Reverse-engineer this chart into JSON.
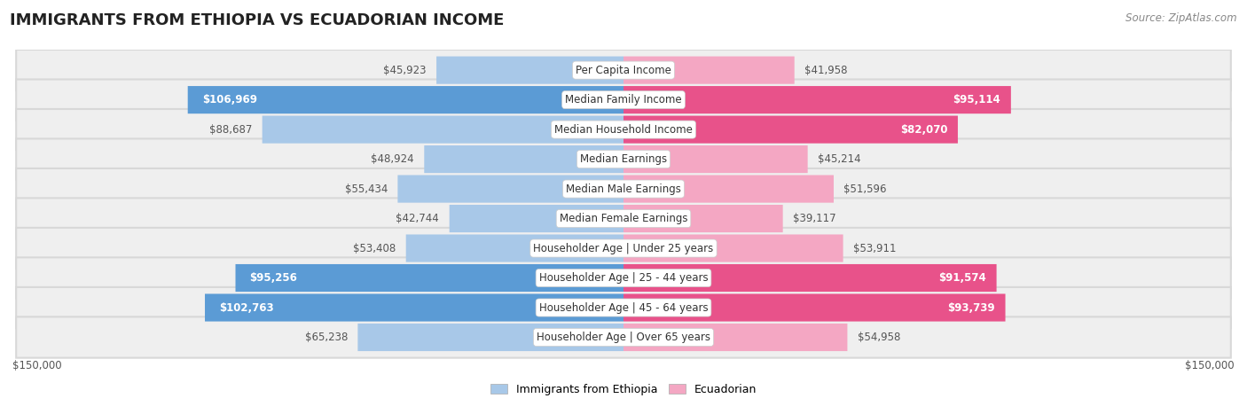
{
  "title": "IMMIGRANTS FROM ETHIOPIA VS ECUADORIAN INCOME",
  "source": "Source: ZipAtlas.com",
  "categories": [
    "Per Capita Income",
    "Median Family Income",
    "Median Household Income",
    "Median Earnings",
    "Median Male Earnings",
    "Median Female Earnings",
    "Householder Age | Under 25 years",
    "Householder Age | 25 - 44 years",
    "Householder Age | 45 - 64 years",
    "Householder Age | Over 65 years"
  ],
  "ethiopia_values": [
    45923,
    106969,
    88687,
    48924,
    55434,
    42744,
    53408,
    95256,
    102763,
    65238
  ],
  "ecuadorian_values": [
    41958,
    95114,
    82070,
    45214,
    51596,
    39117,
    53911,
    91574,
    93739,
    54958
  ],
  "ethiopia_color_light": "#a8c8e8",
  "ethiopia_color_dark": "#5b9bd5",
  "ecuadorian_color_light": "#f4a7c3",
  "ecuadorian_color_dark": "#e8528a",
  "max_value": 150000,
  "label_fontsize": 8.5,
  "title_fontsize": 13,
  "legend_fontsize": 9,
  "background_color": "#ffffff",
  "row_bg_color": "#efefef",
  "ethiopia_label_values": [
    "$45,923",
    "$106,969",
    "$88,687",
    "$48,924",
    "$55,434",
    "$42,744",
    "$53,408",
    "$95,256",
    "$102,763",
    "$65,238"
  ],
  "ecuadorian_label_values": [
    "$41,958",
    "$95,114",
    "$82,070",
    "$45,214",
    "$51,596",
    "$39,117",
    "$53,911",
    "$91,574",
    "$93,739",
    "$54,958"
  ],
  "ethiopia_large": [
    false,
    true,
    false,
    false,
    false,
    false,
    false,
    true,
    true,
    false
  ],
  "ecuadorian_large": [
    false,
    true,
    true,
    false,
    false,
    false,
    false,
    true,
    true,
    false
  ]
}
